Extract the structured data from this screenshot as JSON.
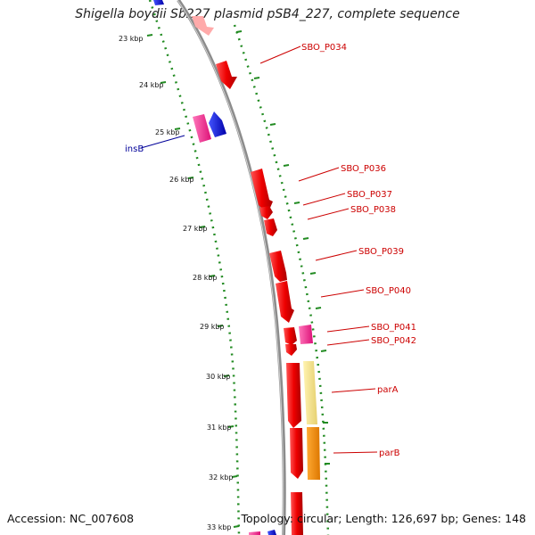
{
  "title": "Shigella boydii Sb227 plasmid pSB4_227, complete sequence",
  "accession": "Accession: NC_007608",
  "summary": "Topology: circular; Length: 126,697 bp; Genes: 148",
  "colors": {
    "backbone": "#8c8c8c",
    "dots": "#228b22",
    "cds_red": "#ee1111",
    "cds_pink": "#ff3399",
    "cds_blue": "#1a1aee",
    "cds_orange": "#ff8c00",
    "cds_tan": "#eedd88",
    "label_red": "#cc0000",
    "label_blue": "#000099"
  },
  "kbp_ticks": [
    "23 kbp",
    "24 kbp",
    "25 kbp",
    "26 kbp",
    "27 kbp",
    "28 kbp",
    "29 kbp",
    "30 kbp",
    "31 kbp",
    "32 kbp",
    "33 kbp"
  ],
  "gene_labels": [
    "SBO_P034",
    "insB",
    "SBO_P036",
    "SBO_P037",
    "SBO_P038",
    "SBO_P039",
    "SBO_P040",
    "SBO_P041",
    "SBO_P042",
    "parA",
    "parB"
  ]
}
